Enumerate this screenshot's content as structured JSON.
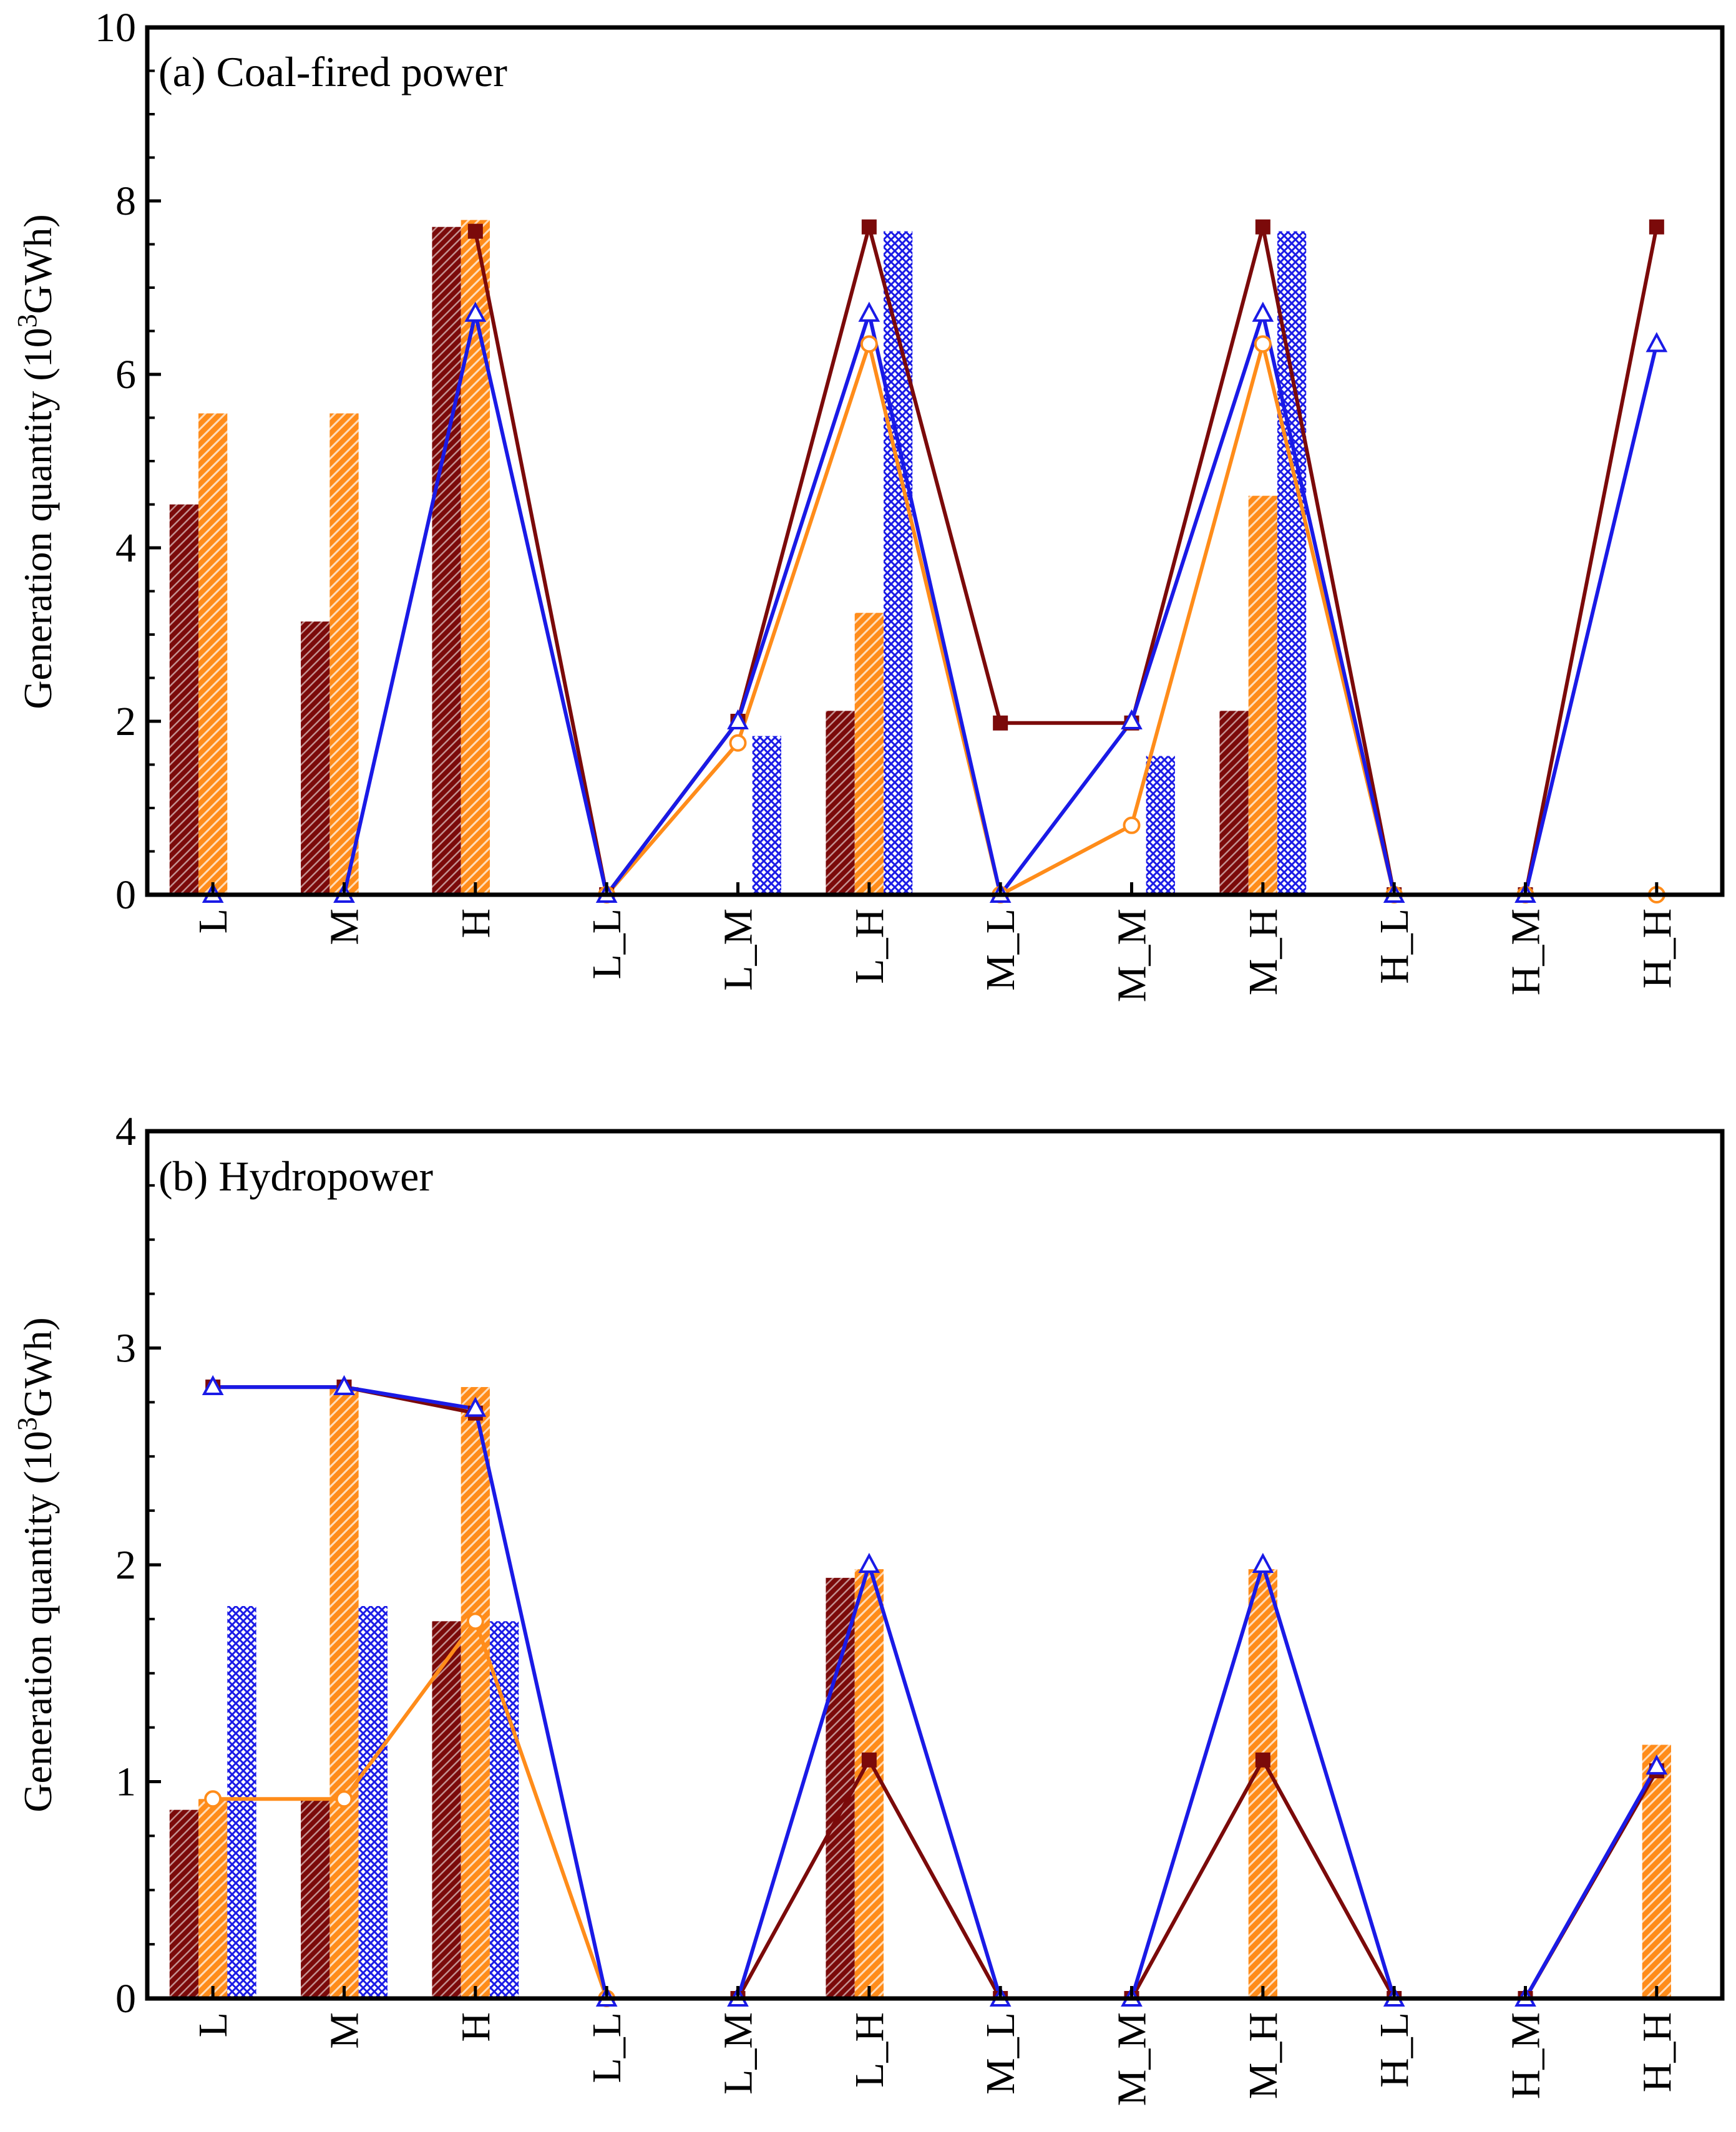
{
  "colors": {
    "series1": "#7b0a0a",
    "series2": "#ff8c1a",
    "series3": "#1a1ae6"
  },
  "chart_data": [
    {
      "type": "bar+line",
      "title": "(a) Coal-fired power",
      "ylabel_main": "Generation quantity (10",
      "ylabel_sup": "3",
      "ylabel_end": "GWh)",
      "ylim": [
        0,
        10
      ],
      "yticks": [
        "0",
        "2",
        "4",
        "6",
        "8",
        "10"
      ],
      "categories": [
        "L",
        "M",
        "H",
        "L_L",
        "L_M",
        "L_H",
        "M_L",
        "M_M",
        "M_H",
        "H_L",
        "H_M",
        "H_H"
      ],
      "bars": [
        {
          "pattern": "diag-dark",
          "values": [
            4.5,
            3.15,
            7.7,
            0,
            0,
            2.12,
            0,
            0,
            2.12,
            0,
            0,
            0
          ]
        },
        {
          "pattern": "diag-orange",
          "values": [
            5.55,
            5.55,
            7.78,
            0,
            0,
            3.25,
            0,
            0,
            4.6,
            0,
            0,
            0
          ]
        },
        {
          "pattern": "cross-blue",
          "values": [
            0,
            0,
            0,
            0,
            1.83,
            7.65,
            0,
            1.6,
            7.65,
            0,
            0,
            0
          ]
        }
      ],
      "lines": [
        {
          "marker": "square",
          "values": [
            null,
            null,
            7.65,
            0,
            2.0,
            7.7,
            1.98,
            1.98,
            7.7,
            0,
            0,
            7.7
          ]
        },
        {
          "marker": "circle",
          "values": [
            null,
            null,
            null,
            0,
            1.75,
            6.35,
            0,
            0.8,
            6.35,
            0,
            0,
            0
          ]
        },
        {
          "marker": "triangle",
          "values": [
            0,
            0,
            6.7,
            0,
            2.0,
            6.7,
            0,
            2.0,
            6.7,
            0,
            0,
            6.35
          ]
        }
      ]
    },
    {
      "type": "bar+line",
      "title": "(b) Hydropower",
      "ylabel_main": "Generation quantity (10",
      "ylabel_sup": "3",
      "ylabel_end": "GWh)",
      "ylim": [
        0,
        4
      ],
      "yticks": [
        "0",
        "1",
        "2",
        "3",
        "4"
      ],
      "categories": [
        "L",
        "M",
        "H",
        "L_L",
        "L_M",
        "L_H",
        "M_L",
        "M_M",
        "M_H",
        "H_L",
        "H_M",
        "H_H"
      ],
      "bars": [
        {
          "pattern": "diag-dark",
          "values": [
            0.87,
            0.92,
            1.74,
            0,
            0,
            1.94,
            0,
            0,
            0,
            0,
            0,
            0
          ]
        },
        {
          "pattern": "diag-orange",
          "values": [
            0.92,
            2.82,
            2.82,
            0,
            0,
            1.98,
            0,
            0,
            1.98,
            0,
            0,
            1.17
          ]
        },
        {
          "pattern": "cross-blue",
          "values": [
            1.81,
            1.81,
            1.74,
            0,
            0,
            0,
            0,
            0,
            0,
            0,
            0,
            0
          ]
        }
      ],
      "lines": [
        {
          "marker": "square",
          "values": [
            2.82,
            2.82,
            2.7,
            null,
            0,
            1.1,
            0,
            0,
            1.1,
            0,
            0,
            1.05
          ]
        },
        {
          "marker": "circle",
          "values": [
            0.92,
            0.92,
            1.74,
            0,
            null,
            null,
            null,
            null,
            null,
            null,
            null,
            null
          ]
        },
        {
          "marker": "triangle",
          "values": [
            2.82,
            2.82,
            2.72,
            0,
            0,
            2.0,
            0,
            0,
            2.0,
            0,
            0,
            1.07
          ]
        }
      ]
    }
  ]
}
